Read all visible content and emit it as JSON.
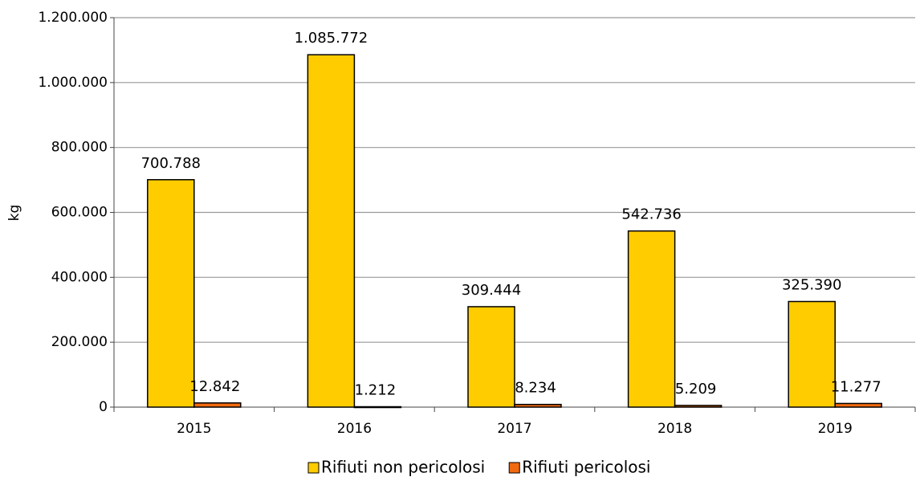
{
  "chart_data": {
    "type": "bar",
    "y_label": "kg",
    "categories": [
      "2015",
      "2016",
      "2017",
      "2018",
      "2019"
    ],
    "series": [
      {
        "name": "Rifiuti non pericolosi",
        "color": "#ffcc00",
        "values": [
          700788,
          1085772,
          309444,
          542736,
          325390
        ],
        "value_labels": [
          "700.788",
          "1.085.772",
          "309.444",
          "542.736",
          "325.390"
        ]
      },
      {
        "name": "Rifiuti pericolosi",
        "color": "#f26a0f",
        "values": [
          12842,
          1212,
          8234,
          5209,
          11277
        ],
        "value_labels": [
          "12.842",
          "1.212",
          "8.234",
          "5.209",
          "11.277"
        ]
      }
    ],
    "ylim": [
      0,
      1200000
    ],
    "yticks": [
      {
        "value": 0,
        "label": "0"
      },
      {
        "value": 200000,
        "label": "200.000"
      },
      {
        "value": 400000,
        "label": "400.000"
      },
      {
        "value": 600000,
        "label": "600.000"
      },
      {
        "value": 800000,
        "label": "800.000"
      },
      {
        "value": 1000000,
        "label": "1.000.000"
      },
      {
        "value": 1200000,
        "label": "1.200.000"
      }
    ],
    "grid": true,
    "legend": "bottom"
  }
}
